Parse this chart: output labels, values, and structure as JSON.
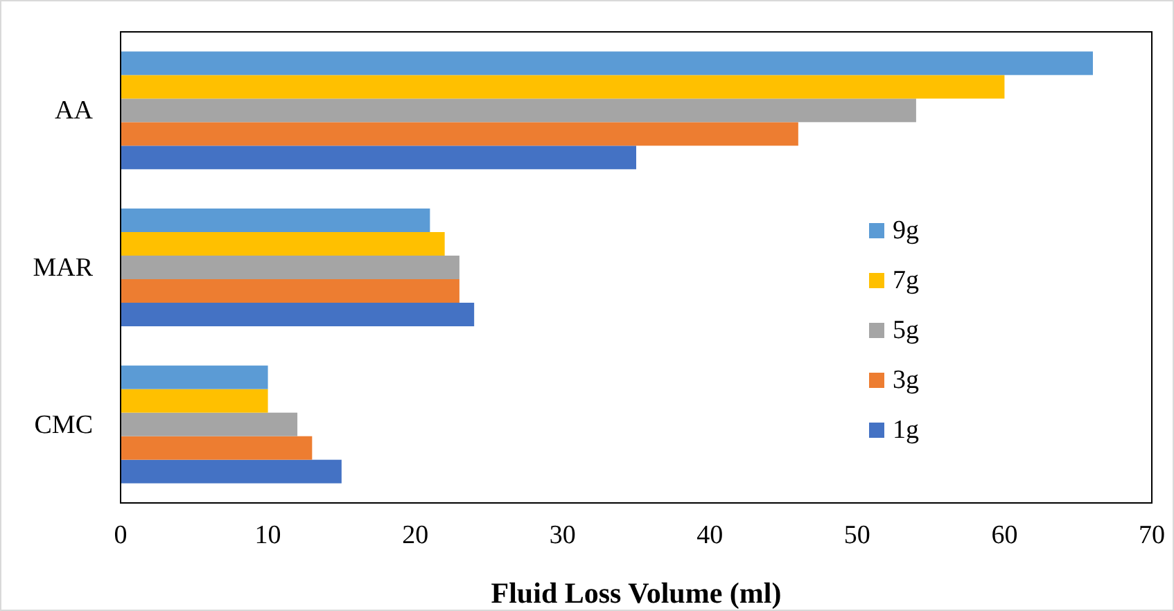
{
  "chart_data": {
    "type": "bar",
    "orientation": "horizontal",
    "xlabel": "Fluid Loss Volume (ml)",
    "categories": [
      "AA",
      "MAR",
      "CMC"
    ],
    "series": [
      {
        "name": "1g",
        "color": "#4472c4",
        "values": [
          35,
          24,
          15
        ]
      },
      {
        "name": "3g",
        "color": "#ed7d31",
        "values": [
          46,
          23,
          13
        ]
      },
      {
        "name": "5g",
        "color": "#a5a5a5",
        "values": [
          54,
          23,
          12
        ]
      },
      {
        "name": "7g",
        "color": "#ffc000",
        "values": [
          60,
          22,
          10
        ]
      },
      {
        "name": "9g",
        "color": "#5b9bd5",
        "values": [
          66,
          21,
          10
        ]
      }
    ],
    "xlim": [
      0,
      70
    ],
    "xticks": [
      0,
      10,
      20,
      30,
      40,
      50,
      60,
      70
    ],
    "grid": false,
    "legend": "right"
  }
}
